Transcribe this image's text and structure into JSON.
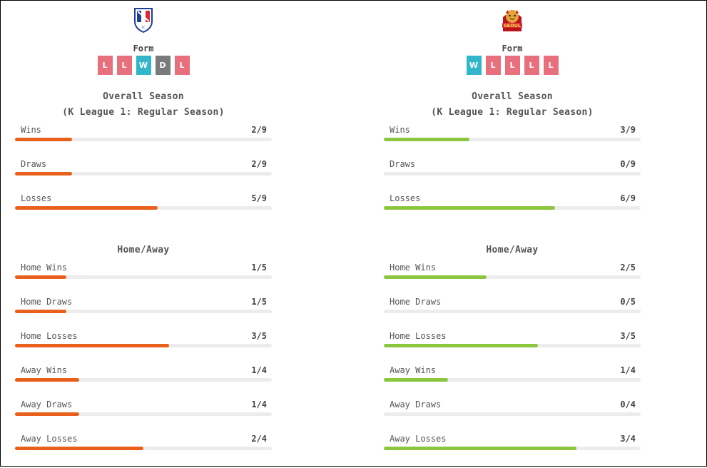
{
  "home": {
    "logo_icon": "suwon-crest-icon",
    "form_title": "Form",
    "form": [
      "L",
      "L",
      "W",
      "D",
      "L"
    ],
    "overall_title": "Overall Season",
    "overall_subtitle": "(K League 1: Regular Season)",
    "overall": [
      {
        "label": "Wins",
        "value": "2/9",
        "ratio": 0.2222
      },
      {
        "label": "Draws",
        "value": "2/9",
        "ratio": 0.2222
      },
      {
        "label": "Losses",
        "value": "5/9",
        "ratio": 0.5556
      }
    ],
    "homeaway_title": "Home/Away",
    "homeaway": [
      {
        "label": "Home Wins",
        "value": "1/5",
        "ratio": 0.2
      },
      {
        "label": "Home Draws",
        "value": "1/5",
        "ratio": 0.2
      },
      {
        "label": "Home Losses",
        "value": "3/5",
        "ratio": 0.6
      },
      {
        "label": "Away Wins",
        "value": "1/4",
        "ratio": 0.25
      },
      {
        "label": "Away Draws",
        "value": "1/4",
        "ratio": 0.25
      },
      {
        "label": "Away Losses",
        "value": "2/4",
        "ratio": 0.5
      }
    ]
  },
  "away": {
    "logo_icon": "fc-seoul-crest-icon",
    "form_title": "Form",
    "form": [
      "W",
      "L",
      "L",
      "L",
      "L"
    ],
    "overall_title": "Overall Season",
    "overall_subtitle": "(K League 1: Regular Season)",
    "overall": [
      {
        "label": "Wins",
        "value": "3/9",
        "ratio": 0.3333
      },
      {
        "label": "Draws",
        "value": "0/9",
        "ratio": 0
      },
      {
        "label": "Losses",
        "value": "6/9",
        "ratio": 0.6667
      }
    ],
    "homeaway_title": "Home/Away",
    "homeaway": [
      {
        "label": "Home Wins",
        "value": "2/5",
        "ratio": 0.4
      },
      {
        "label": "Home Draws",
        "value": "0/5",
        "ratio": 0
      },
      {
        "label": "Home Losses",
        "value": "3/5",
        "ratio": 0.6
      },
      {
        "label": "Away Wins",
        "value": "1/4",
        "ratio": 0.25
      },
      {
        "label": "Away Draws",
        "value": "0/4",
        "ratio": 0
      },
      {
        "label": "Away Losses",
        "value": "3/4",
        "ratio": 0.75
      }
    ]
  },
  "colors": {
    "home_bar": "#e8601c",
    "away_bar": "#8cc63f",
    "loss": "#e8707c",
    "win": "#33b6c9",
    "draw": "#7a7a7a",
    "track": "#ececec"
  }
}
